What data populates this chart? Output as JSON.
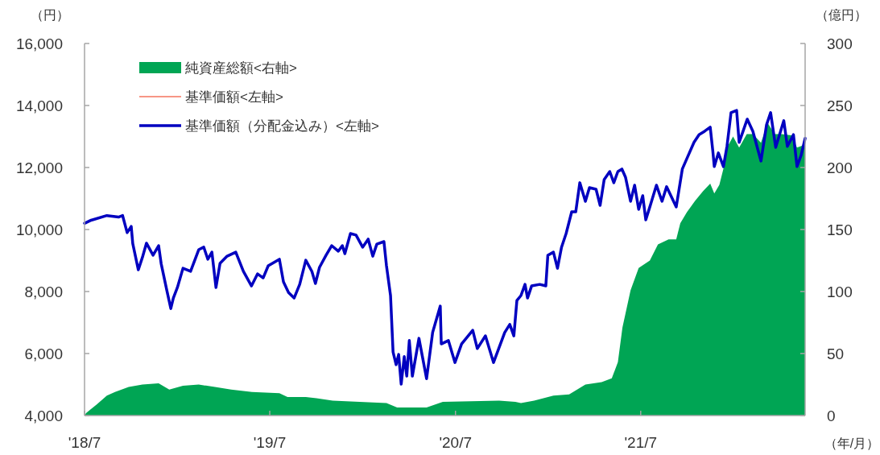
{
  "chart_data": {
    "type": "line",
    "ylabel": "（円）",
    "y2label": "（億円）",
    "xlabel": "（年/月）",
    "xlim": [
      "2018-07-01",
      "2022-05-21"
    ],
    "xticks": [
      {
        "value": "2018-07-01",
        "label": "'18/7"
      },
      {
        "value": "2019-07-01",
        "label": "'19/7"
      },
      {
        "value": "2020-07-01",
        "label": "'20/7"
      },
      {
        "value": "2021-07-01",
        "label": "'21/7"
      }
    ],
    "ylim": [
      4000,
      16000
    ],
    "yticks": [
      {
        "value": 4000,
        "label": "4,000"
      },
      {
        "value": 6000,
        "label": "6,000"
      },
      {
        "value": 8000,
        "label": "8,000"
      },
      {
        "value": 10000,
        "label": "10,000"
      },
      {
        "value": 12000,
        "label": "12,000"
      },
      {
        "value": 14000,
        "label": "14,000"
      },
      {
        "value": 16000,
        "label": "16,000"
      }
    ],
    "y2lim": [
      0,
      300
    ],
    "y2ticks": [
      0,
      50,
      100,
      150,
      200,
      250,
      300
    ],
    "legend": "top left",
    "series": [
      {
        "name": "純資産総額<右軸>",
        "type": "area",
        "axis": "y2",
        "color": "#00a554",
        "x": [
          "2018-07-01",
          "2018-07-04",
          "2018-07-25",
          "2018-08-14",
          "2018-08-30",
          "2018-09-26",
          "2018-10-23",
          "2018-11-24",
          "2018-12-15",
          "2019-01-11",
          "2019-02-11",
          "2019-03-15",
          "2019-04-16",
          "2019-05-27",
          "2019-07-20",
          "2019-08-05",
          "2019-09-10",
          "2019-10-01",
          "2019-11-02",
          "2020-02-16",
          "2020-03-08",
          "2020-05-05",
          "2020-06-06",
          "2020-09-25",
          "2020-10-27",
          "2020-11-07",
          "2020-12-03",
          "2021-01-10",
          "2021-02-10",
          "2021-03-14",
          "2021-04-15",
          "2021-05-05",
          "2021-05-17",
          "2021-05-26",
          "2021-06-11",
          "2021-06-27",
          "2021-07-19",
          "2021-08-04",
          "2021-08-25",
          "2021-09-09",
          "2021-09-17",
          "2021-09-30",
          "2021-10-16",
          "2021-11-01",
          "2021-11-15",
          "2021-11-23",
          "2021-12-03",
          "2021-12-11",
          "2021-12-18",
          "2021-12-30",
          "2022-01-11",
          "2022-01-26",
          "2022-02-07",
          "2022-02-23",
          "2022-03-08",
          "2022-03-22",
          "2022-04-04",
          "2022-04-24",
          "2022-05-05",
          "2022-05-18",
          "2022-05-21"
        ],
        "values": [
          0,
          2,
          9,
          16,
          19,
          23,
          25,
          26,
          21,
          24,
          25,
          23,
          21,
          19,
          18,
          15,
          15,
          14,
          12,
          10,
          6.5,
          6.5,
          11,
          12,
          11,
          10,
          12,
          16,
          17,
          25,
          27,
          30,
          43,
          71,
          101,
          119,
          125,
          138,
          142,
          142,
          155,
          164,
          173,
          181,
          187,
          179,
          186,
          199,
          216,
          225,
          216,
          227,
          227,
          220,
          236,
          227,
          227,
          226,
          216,
          218,
          218
        ]
      },
      {
        "name": "基準価額<左軸>",
        "type": "line",
        "color": "#f4735e"
      },
      {
        "name": "基準価額（分配金込み）<左軸>",
        "type": "line",
        "color": "#0000c0",
        "x": [
          "2018-07-01",
          "2018-07-14",
          "2018-08-14",
          "2018-09-06",
          "2018-09-14",
          "2018-09-23",
          "2018-10-01",
          "2018-10-04",
          "2018-10-15",
          "2018-10-23",
          "2018-10-31",
          "2018-11-13",
          "2018-11-24",
          "2018-11-29",
          "2018-12-10",
          "2018-12-18",
          "2018-12-23",
          "2018-12-31",
          "2019-01-11",
          "2019-01-26",
          "2019-02-11",
          "2019-02-21",
          "2019-03-01",
          "2019-03-09",
          "2019-03-17",
          "2019-03-25",
          "2019-04-08",
          "2019-04-25",
          "2019-05-10",
          "2019-05-26",
          "2019-06-07",
          "2019-06-18",
          "2019-06-28",
          "2019-07-20",
          "2019-07-28",
          "2019-08-07",
          "2019-08-18",
          "2019-08-29",
          "2019-09-10",
          "2019-09-22",
          "2019-09-29",
          "2019-10-07",
          "2019-10-20",
          "2019-10-31",
          "2019-11-13",
          "2019-11-21",
          "2019-11-26",
          "2019-12-07",
          "2019-12-18",
          "2019-12-31",
          "2020-01-11",
          "2020-01-20",
          "2020-01-28",
          "2020-02-11",
          "2020-02-16",
          "2020-02-24",
          "2020-02-29",
          "2020-03-06",
          "2020-03-11",
          "2020-03-16",
          "2020-03-22",
          "2020-03-27",
          "2020-04-01",
          "2020-04-07",
          "2020-04-20",
          "2020-05-05",
          "2020-05-17",
          "2020-06-01",
          "2020-06-03",
          "2020-06-17",
          "2020-06-30",
          "2020-07-13",
          "2020-08-04",
          "2020-08-13",
          "2020-08-29",
          "2020-09-14",
          "2020-10-06",
          "2020-10-16",
          "2020-10-24",
          "2020-10-30",
          "2020-11-07",
          "2020-11-15",
          "2020-11-20",
          "2020-11-28",
          "2020-12-14",
          "2020-12-26",
          "2020-12-30",
          "2021-01-10",
          "2021-01-18",
          "2021-01-26",
          "2021-02-04",
          "2021-02-15",
          "2021-02-23",
          "2021-03-03",
          "2021-03-14",
          "2021-03-22",
          "2021-04-04",
          "2021-04-12",
          "2021-04-20",
          "2021-05-01",
          "2021-05-09",
          "2021-05-17",
          "2021-05-25",
          "2021-06-01",
          "2021-06-11",
          "2021-06-19",
          "2021-06-27",
          "2021-07-05",
          "2021-07-11",
          "2021-07-19",
          "2021-08-01",
          "2021-08-12",
          "2021-08-21",
          "2021-09-06",
          "2021-09-09",
          "2021-09-21",
          "2021-09-30",
          "2021-10-14",
          "2021-10-24",
          "2021-11-04",
          "2021-11-15",
          "2021-11-20",
          "2021-11-23",
          "2021-12-01",
          "2021-12-11",
          "2021-12-18",
          "2021-12-26",
          "2022-01-06",
          "2022-01-11",
          "2022-01-27",
          "2022-02-07",
          "2022-02-23",
          "2022-03-06",
          "2022-03-14",
          "2022-03-24",
          "2022-04-09",
          "2022-04-16",
          "2022-04-28",
          "2022-05-05",
          "2022-05-13",
          "2022-05-21"
        ],
        "values": [
          10200,
          10300,
          10450,
          10400,
          10450,
          9900,
          10100,
          9550,
          8700,
          9100,
          9560,
          9170,
          9480,
          8900,
          8050,
          7450,
          7790,
          8130,
          8750,
          8650,
          9350,
          9430,
          9040,
          9270,
          8130,
          8910,
          9140,
          9270,
          8650,
          8180,
          8570,
          8440,
          8830,
          9040,
          8310,
          7970,
          7790,
          8230,
          9010,
          8650,
          8260,
          8780,
          9170,
          9480,
          9300,
          9480,
          9220,
          9870,
          9820,
          9430,
          9690,
          9140,
          9530,
          9610,
          8830,
          7870,
          6050,
          5640,
          5970,
          5010,
          5900,
          5270,
          6420,
          5270,
          6490,
          5190,
          6680,
          7530,
          6310,
          6420,
          5710,
          6310,
          6750,
          6160,
          6570,
          5710,
          6680,
          6940,
          6570,
          7710,
          7870,
          8230,
          7790,
          8180,
          8230,
          8180,
          9170,
          9270,
          8750,
          9430,
          9870,
          10570,
          10570,
          11510,
          10910,
          11350,
          11300,
          10780,
          11610,
          11870,
          11510,
          11870,
          11950,
          11690,
          10910,
          11430,
          10650,
          11090,
          10310,
          10730,
          11430,
          10910,
          11380,
          10830,
          10730,
          11950,
          12290,
          12810,
          13060,
          13170,
          13300,
          12550,
          12030,
          12470,
          12030,
          12680,
          13770,
          13840,
          12810,
          13560,
          13170,
          12210,
          13380,
          13770,
          12650,
          13510,
          12680,
          13060,
          12030,
          12390,
          12940
        ]
      }
    ]
  }
}
